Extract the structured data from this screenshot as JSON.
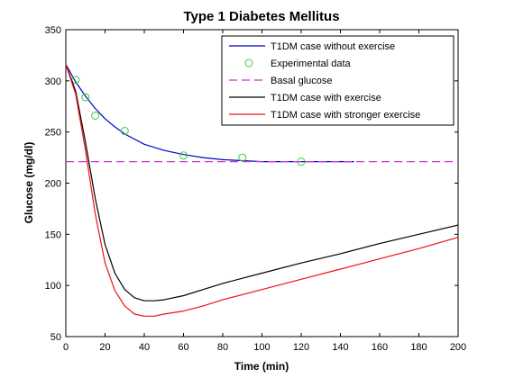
{
  "chart_data": {
    "type": "line",
    "title": "Type 1 Diabetes Mellitus",
    "xlabel": "Time (min)",
    "ylabel": "Glucose (mg/dl)",
    "xlim": [
      0,
      200
    ],
    "ylim": [
      50,
      350
    ],
    "xticks": [
      "0",
      "20",
      "40",
      "60",
      "80",
      "100",
      "120",
      "140",
      "160",
      "180",
      "200"
    ],
    "yticks": [
      "50",
      "100",
      "150",
      "200",
      "250",
      "300",
      "350"
    ],
    "grid": false,
    "legend_position": "top-right",
    "series": [
      {
        "name": "T1DM case without exercise",
        "style": "solid",
        "color": "#0000cc",
        "x": [
          0,
          5,
          10,
          15,
          20,
          25,
          30,
          40,
          50,
          60,
          70,
          80,
          90,
          100,
          120,
          140,
          147
        ],
        "y": [
          316,
          299,
          285,
          273,
          263,
          255,
          248,
          238,
          232,
          228,
          225,
          223,
          222,
          221,
          221,
          221,
          221
        ]
      },
      {
        "name": "Experimental data",
        "style": "marker",
        "color": "#33cc33",
        "x": [
          5,
          10,
          15,
          30,
          60,
          90,
          120
        ],
        "y": [
          301,
          284,
          266,
          251,
          227,
          225,
          221
        ]
      },
      {
        "name": "Basal glucose",
        "style": "dashed",
        "color": "#cc33cc",
        "x": [
          0,
          200
        ],
        "y": [
          221,
          221
        ]
      },
      {
        "name": "T1DM case with exercise",
        "style": "solid",
        "color": "#000000",
        "x": [
          0,
          5,
          10,
          15,
          20,
          25,
          30,
          35,
          40,
          45,
          50,
          60,
          70,
          80,
          100,
          120,
          140,
          160,
          180,
          200
        ],
        "y": [
          316,
          290,
          240,
          185,
          140,
          112,
          96,
          88,
          85,
          85,
          86,
          90,
          96,
          102,
          112,
          122,
          131,
          141,
          150,
          159
        ]
      },
      {
        "name": "T1DM case with stronger exercise",
        "style": "solid",
        "color": "#ee1111",
        "x": [
          0,
          5,
          10,
          15,
          20,
          25,
          30,
          35,
          40,
          45,
          50,
          60,
          70,
          80,
          100,
          120,
          140,
          160,
          180,
          200
        ],
        "y": [
          316,
          287,
          232,
          170,
          122,
          95,
          80,
          72,
          70,
          70,
          72,
          75,
          80,
          86,
          96,
          106,
          116,
          126,
          136,
          147
        ]
      }
    ]
  }
}
